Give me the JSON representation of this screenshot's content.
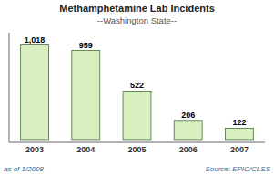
{
  "chart_data": {
    "type": "bar",
    "title": "Methamphetamine Lab Incidents",
    "subtitle": "--Washington State--",
    "categories": [
      "2003",
      "2004",
      "2005",
      "2006",
      "2007"
    ],
    "values": [
      1018,
      959,
      522,
      206,
      122
    ],
    "value_labels": [
      "1,018",
      "959",
      "522",
      "206",
      "122"
    ],
    "data_labels": true,
    "color": "#d8f0c0",
    "ylim": [
      -30,
      1150
    ],
    "tick_labels": "x",
    "grid": false,
    "annotations": [
      "as of 1/2008",
      "Source: EPIC/CLSS"
    ]
  }
}
